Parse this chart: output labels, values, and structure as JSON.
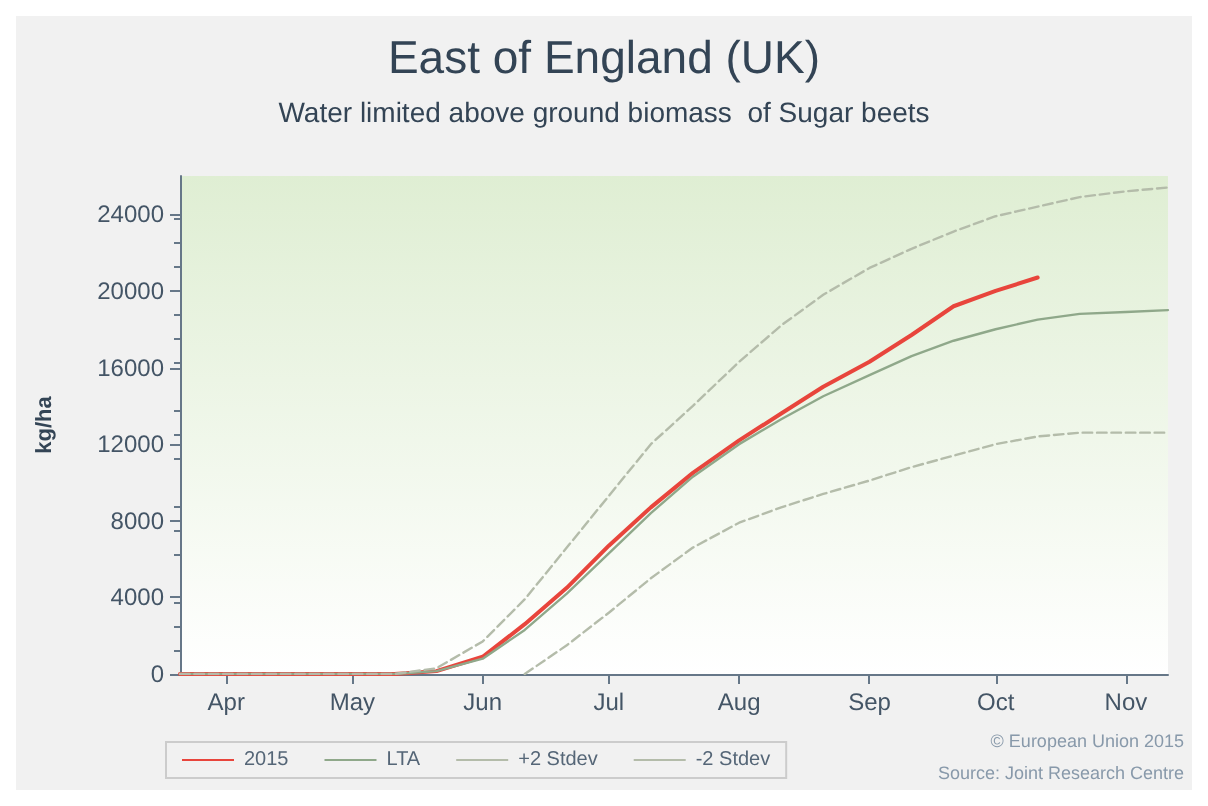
{
  "chart_data": {
    "type": "line",
    "title": "East of England (UK)",
    "subtitle": "Water limited above ground biomass  of Sugar beets",
    "ylabel": "kg/ha",
    "x": [
      "--03-21",
      "--04-01",
      "--04-11",
      "--04-21",
      "--05-01",
      "--05-11",
      "--05-21",
      "--06-01",
      "--06-11",
      "--06-21",
      "--07-01",
      "--07-11",
      "--07-21",
      "--08-01",
      "--08-11",
      "--08-21",
      "--09-01",
      "--09-11",
      "--09-21",
      "--10-01",
      "--10-11",
      "--10-21",
      "--11-01",
      "--11-11"
    ],
    "series": [
      {
        "name": "2015",
        "color": "#e8453c",
        "line_style": "solid",
        "values": [
          0,
          0,
          0,
          0,
          0,
          0,
          150,
          900,
          2600,
          4500,
          6700,
          8700,
          10500,
          12200,
          13600,
          15000,
          16300,
          17700,
          19200,
          20000,
          20700,
          null,
          null,
          null
        ]
      },
      {
        "name": "LTA",
        "color": "#8fa88a",
        "line_style": "solid",
        "values": [
          0,
          0,
          0,
          0,
          0,
          0,
          150,
          800,
          2300,
          4200,
          6300,
          8400,
          10300,
          12000,
          13300,
          14500,
          15600,
          16600,
          17400,
          18000,
          18500,
          18800,
          18900,
          19000
        ]
      },
      {
        "name": "+2 Stdev",
        "color": "#b4bcaa",
        "line_style": "dashed",
        "values": [
          0,
          0,
          0,
          0,
          0,
          0,
          300,
          1700,
          3900,
          6600,
          9300,
          12000,
          14000,
          16300,
          18200,
          19800,
          21200,
          22200,
          23100,
          23900,
          24400,
          24900,
          25200,
          25400
        ]
      },
      {
        "name": "-2 Stdev",
        "color": "#b4bcaa",
        "line_style": "dashed",
        "values": [
          null,
          null,
          null,
          null,
          null,
          null,
          null,
          null,
          0,
          1500,
          3200,
          5000,
          6600,
          7900,
          8700,
          9400,
          10100,
          10800,
          11400,
          12000,
          12400,
          12600,
          12600,
          12600
        ]
      }
    ],
    "xlim": [
      "--03-21",
      "--11-11"
    ],
    "xticks": [
      {
        "value": "--04-01",
        "label": "Apr"
      },
      {
        "value": "--05-01",
        "label": "May"
      },
      {
        "value": "--06-01",
        "label": "Jun"
      },
      {
        "value": "--07-01",
        "label": "Jul"
      },
      {
        "value": "--08-01",
        "label": "Aug"
      },
      {
        "value": "--09-01",
        "label": "Sep"
      },
      {
        "value": "--10-01",
        "label": "Oct"
      },
      {
        "value": "--11-01",
        "label": "Nov"
      }
    ],
    "ylim": [
      0,
      26000
    ],
    "yticks": [
      0,
      4000,
      8000,
      12000,
      16000,
      20000,
      24000
    ],
    "legend": "bottom left",
    "marker": "none",
    "annotations": [
      "© European Union 2015",
      "Source: Joint Research Centre"
    ]
  }
}
